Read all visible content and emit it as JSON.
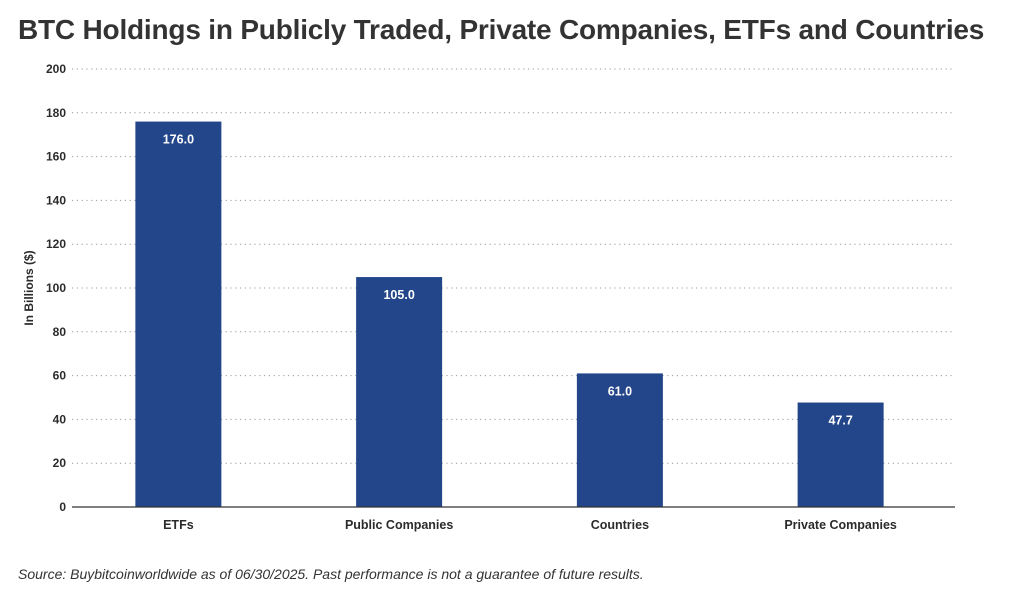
{
  "title": "BTC Holdings in Publicly Traded, Private Companies, ETFs and Countries",
  "source": "Source: Buybitcoinworldwide as of 06/30/2025. Past performance is not a guarantee of future results.",
  "chart_data": {
    "type": "bar",
    "title": "BTC Holdings in Publicly Traded, Private Companies, ETFs and Countries",
    "xlabel": "",
    "ylabel": "In Billions ($)",
    "categories": [
      "ETFs",
      "Public Companies",
      "Countries",
      "Private Companies"
    ],
    "values": [
      176.0,
      105.0,
      61.0,
      47.7
    ],
    "data_labels": [
      "176.0",
      "105.0",
      "61.0",
      "47.7"
    ],
    "ylim": [
      0,
      200
    ],
    "yticks": [
      0,
      20,
      40,
      60,
      80,
      100,
      120,
      140,
      160,
      180,
      200
    ],
    "grid": "horizontal dotted",
    "legend": "none",
    "bar_color": "#23468a"
  }
}
